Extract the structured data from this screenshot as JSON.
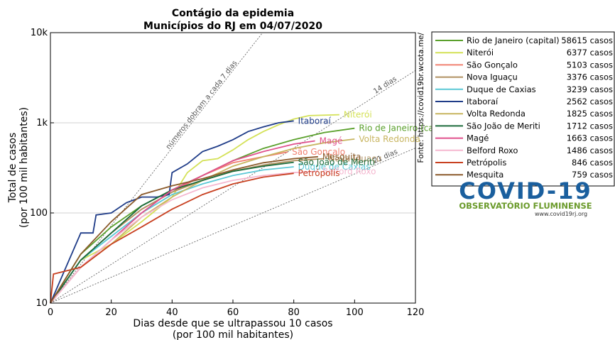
{
  "chart_data": {
    "type": "line",
    "title": "Contágio da epidemia",
    "subtitle": "Municípios do RJ em 04/07/2020",
    "xlabel": "Dias desde que se ultrapassou 10 casos",
    "xlabel2": "(por 100 mil habitantes)",
    "ylabel": "Total de casos",
    "ylabel2": "(por 100 mil habitantes)",
    "source": "Fonte: https://covid19br.wcota.me/",
    "log_y": true,
    "grid": true,
    "xlim": [
      0,
      120
    ],
    "xticks": [
      0,
      20,
      40,
      60,
      80,
      100,
      120
    ],
    "ylim": [
      10,
      10000
    ],
    "yticks": [
      10,
      100,
      {
        "value": 1000,
        "label": "1k"
      },
      {
        "value": 10000,
        "label": "10k"
      }
    ],
    "reference_lines": [
      {
        "label": "números dobram a cada 7 dias",
        "doubling_days": 7
      },
      {
        "label": "14 dias",
        "doubling_days": 14
      },
      {
        "label": "21 dias",
        "doubling_days": 21
      }
    ],
    "legend_position": "right",
    "logo": {
      "title": "COVID-19",
      "subtitle": "OBSERVATÓRIO FLUMINENSE",
      "url": "www.covid19rj.org"
    },
    "series": [
      {
        "name": "Rio de Janeiro (capital)",
        "cases_label": "58615 casos",
        "color": "#5aa02c",
        "x": [
          0,
          10,
          20,
          30,
          40,
          50,
          60,
          70,
          80,
          90,
          100
        ],
        "values": [
          10,
          35,
          70,
          120,
          180,
          260,
          380,
          520,
          650,
          780,
          870
        ]
      },
      {
        "name": "Niterói",
        "cases_label": "6377 casos",
        "color": "#d4e157",
        "x": [
          0,
          10,
          20,
          30,
          40,
          45,
          50,
          55,
          60,
          65,
          70,
          75,
          80,
          85,
          95
        ],
        "values": [
          10,
          30,
          45,
          80,
          150,
          280,
          380,
          400,
          500,
          650,
          800,
          950,
          1100,
          1200,
          1230
        ]
      },
      {
        "name": "São Gonçalo",
        "cases_label": "5103 casos",
        "color": "#f08070",
        "x": [
          0,
          10,
          20,
          30,
          40,
          50,
          60,
          70,
          78
        ],
        "values": [
          10,
          30,
          60,
          110,
          170,
          260,
          360,
          420,
          475
        ]
      },
      {
        "name": "Nova Iguaçu",
        "cases_label": "3376 casos",
        "color": "#b09060",
        "x": [
          0,
          10,
          20,
          30,
          40,
          50,
          60,
          70,
          80,
          90
        ],
        "values": [
          10,
          30,
          60,
          110,
          170,
          230,
          290,
          340,
          380,
          400
        ]
      },
      {
        "name": "Duque de Caxias",
        "cases_label": "3239 casos",
        "color": "#5bc8d6",
        "x": [
          0,
          10,
          20,
          30,
          40,
          50,
          60,
          70,
          80
        ],
        "values": [
          10,
          30,
          55,
          100,
          160,
          210,
          260,
          300,
          325
        ]
      },
      {
        "name": "Itaboraí",
        "cases_label": "2562 casos",
        "color": "#1f3c88",
        "x": [
          0,
          10,
          14,
          15,
          20,
          25,
          30,
          35,
          39,
          40,
          45,
          50,
          55,
          60,
          65,
          70,
          75,
          80
        ],
        "values": [
          10,
          60,
          60,
          95,
          100,
          130,
          150,
          150,
          160,
          280,
          350,
          480,
          550,
          650,
          800,
          900,
          1000,
          1050
        ]
      },
      {
        "name": "Volta Redonda",
        "cases_label": "1825 casos",
        "color": "#c8b560",
        "x": [
          0,
          10,
          20,
          30,
          40,
          50,
          60,
          70,
          80,
          90,
          100
        ],
        "values": [
          10,
          25,
          45,
          90,
          150,
          230,
          330,
          420,
          520,
          600,
          660
        ]
      },
      {
        "name": "São João de Meriti",
        "cases_label": "1712 casos",
        "color": "#1b6b3a",
        "x": [
          0,
          10,
          20,
          30,
          40,
          50,
          60,
          70,
          80
        ],
        "values": [
          10,
          30,
          60,
          120,
          180,
          230,
          290,
          330,
          365
        ]
      },
      {
        "name": "Magé",
        "cases_label": "1663 casos",
        "color": "#e0508c",
        "x": [
          0,
          10,
          20,
          30,
          40,
          50,
          60,
          70,
          80,
          87
        ],
        "values": [
          10,
          25,
          50,
          100,
          180,
          260,
          380,
          480,
          580,
          630
        ]
      },
      {
        "name": "Belford Roxo",
        "cases_label": "1486 casos",
        "color": "#f5b8d0",
        "x": [
          0,
          10,
          20,
          30,
          40,
          50,
          60,
          70,
          80,
          88
        ],
        "values": [
          10,
          25,
          50,
          90,
          140,
          190,
          230,
          260,
          280,
          290
        ]
      },
      {
        "name": "Petrópolis",
        "cases_label": "846 casos",
        "color": "#c84020",
        "x": [
          0,
          1,
          10,
          20,
          30,
          40,
          50,
          60,
          70,
          80
        ],
        "values": [
          10,
          21,
          25,
          45,
          70,
          110,
          160,
          210,
          250,
          275
        ]
      },
      {
        "name": "Mesquita",
        "cases_label": "759 casos",
        "color": "#8b5a2b",
        "x": [
          0,
          10,
          20,
          30,
          40,
          50,
          60,
          70,
          80,
          88
        ],
        "values": [
          10,
          35,
          80,
          160,
          200,
          240,
          300,
          360,
          400,
          420
        ]
      }
    ]
  }
}
